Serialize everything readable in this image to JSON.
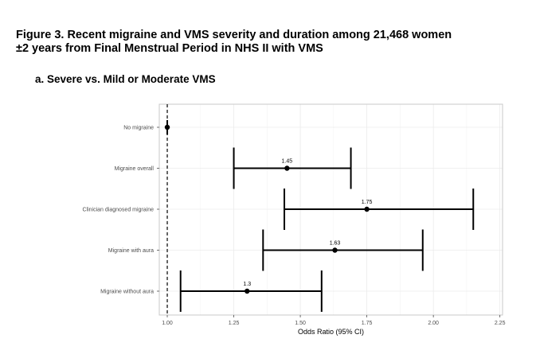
{
  "figure": {
    "title_line1": "Figure 3. Recent migraine and VMS severity and duration among 21,468 women",
    "title_line2": "±2 years from Final Menstrual Period in NHS II with VMS",
    "panel_title": "a.  Severe vs. Mild or Moderate VMS"
  },
  "chart_data": {
    "type": "forest",
    "title": "",
    "xlabel": "Odds Ratio (95% CI)",
    "ylabel": "",
    "xlim": [
      0.97,
      2.26
    ],
    "x_ticks": [
      1.0,
      1.25,
      1.5,
      1.75,
      2.0,
      2.25
    ],
    "x_tick_labels": [
      "1.00",
      "1.25",
      "1.50",
      "1.75",
      "2.00",
      "2.25"
    ],
    "reference_line": 1.0,
    "grid": true,
    "colors": {
      "point": "#000000",
      "grid": "#ebebeb",
      "border": "#c8c8c8"
    },
    "categories": [
      "No migraine",
      "Migraine overall",
      "Clinician diagnosed migraine",
      "Migraine with aura",
      "Migraine without aura"
    ],
    "estimates": [
      1.0,
      1.45,
      1.75,
      1.63,
      1.3
    ],
    "lower": [
      1.0,
      1.25,
      1.44,
      1.36,
      1.05
    ],
    "upper": [
      1.0,
      1.69,
      2.15,
      1.96,
      1.58
    ],
    "value_labels": [
      "",
      "1.45",
      "1.75",
      "1.63",
      "1.3"
    ]
  }
}
